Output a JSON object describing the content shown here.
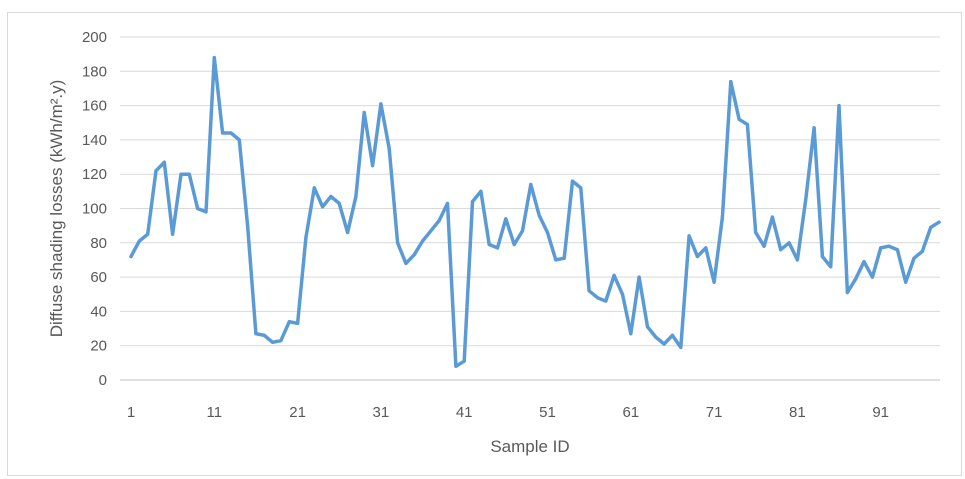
{
  "chart_data": {
    "type": "line",
    "title": "",
    "xlabel": "Sample ID",
    "ylabel": "Diffuse shading losses (kWh/m².y)",
    "ylim": [
      0,
      200
    ],
    "yticks": [
      0,
      20,
      40,
      60,
      80,
      100,
      120,
      140,
      160,
      180,
      200
    ],
    "xticks": [
      1,
      11,
      21,
      31,
      41,
      51,
      61,
      71,
      81,
      91
    ],
    "xlim": [
      1,
      98
    ],
    "grid": "horizontal",
    "legend": "none",
    "series": [
      {
        "color": "#5b9bd5",
        "x": [
          1,
          2,
          3,
          4,
          5,
          6,
          7,
          8,
          9,
          10,
          11,
          12,
          13,
          14,
          15,
          16,
          17,
          18,
          19,
          20,
          21,
          22,
          23,
          24,
          25,
          26,
          27,
          28,
          29,
          30,
          31,
          32,
          33,
          34,
          35,
          36,
          37,
          38,
          39,
          40,
          41,
          42,
          43,
          44,
          45,
          46,
          47,
          48,
          49,
          50,
          51,
          52,
          53,
          54,
          55,
          56,
          57,
          58,
          59,
          60,
          61,
          62,
          63,
          64,
          65,
          66,
          67,
          68,
          69,
          70,
          71,
          72,
          73,
          74,
          75,
          76,
          77,
          78,
          79,
          80,
          81,
          82,
          83,
          84,
          85,
          86,
          87,
          88,
          89,
          90,
          91,
          92,
          93,
          94,
          95,
          96,
          97,
          98
        ],
        "values": [
          72,
          81,
          85,
          122,
          127,
          85,
          120,
          120,
          100,
          98,
          188,
          144,
          144,
          140,
          90,
          27,
          26,
          22,
          23,
          34,
          33,
          83,
          112,
          101,
          107,
          103,
          86,
          107,
          156,
          125,
          161,
          135,
          80,
          68,
          73,
          81,
          87,
          93,
          103,
          8,
          11,
          104,
          110,
          79,
          77,
          94,
          79,
          87,
          114,
          96,
          86,
          70,
          71,
          116,
          112,
          52,
          48,
          46,
          61,
          50,
          27,
          60,
          31,
          25,
          21,
          26,
          19,
          84,
          72,
          77,
          57,
          95,
          174,
          152,
          149,
          86,
          78,
          95,
          76,
          80,
          70,
          105,
          147,
          72,
          66,
          160,
          51,
          59,
          69,
          60,
          77,
          78,
          76,
          57,
          71,
          75,
          89,
          92
        ]
      }
    ]
  }
}
